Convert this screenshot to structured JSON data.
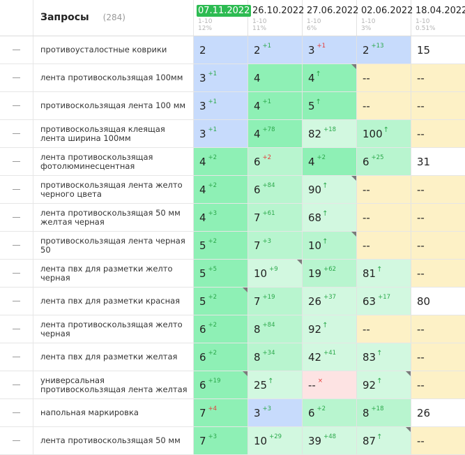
{
  "header": {
    "title": "Запросы",
    "count": "(284)",
    "dates": [
      {
        "label": "07.11.2022",
        "active": true,
        "range": "1-10",
        "pct": "12%"
      },
      {
        "label": "26.10.2022",
        "active": false,
        "range": "1-10",
        "pct": "11%"
      },
      {
        "label": "27.06.2022",
        "active": false,
        "range": "1-10",
        "pct": "6%"
      },
      {
        "label": "02.06.2022",
        "active": false,
        "range": "1-10",
        "pct": "3%"
      },
      {
        "label": "18.04.2022",
        "active": false,
        "range": "1-10",
        "pct": "0.51%"
      }
    ]
  },
  "colors": {
    "blue": "#c7dbfc",
    "green": "#8ef0b5",
    "light": "#b8f5cf",
    "lighter": "#d2f8e0",
    "yellow": "#fdf1c6",
    "pink": "#fde3e3",
    "active_date": "#2dbb52"
  },
  "rows": [
    {
      "query": "противоусталостные коврики",
      "cells": [
        {
          "v": "2",
          "bg": "blue"
        },
        {
          "v": "2",
          "d": "+1",
          "dir": "up",
          "bg": "blue"
        },
        {
          "v": "3",
          "d": "+1",
          "dir": "down",
          "bg": "blue"
        },
        {
          "v": "2",
          "d": "+13",
          "dir": "up",
          "bg": "blue"
        },
        {
          "v": "15",
          "bg": "white"
        }
      ]
    },
    {
      "query": "лента противоскользящая 100мм",
      "cells": [
        {
          "v": "3",
          "d": "+1",
          "dir": "up",
          "bg": "blue"
        },
        {
          "v": "4",
          "bg": "green"
        },
        {
          "v": "4",
          "arrow": true,
          "bg": "green",
          "corner": true
        },
        {
          "v": "--",
          "bg": "yellow"
        },
        {
          "v": "--",
          "bg": "yellow"
        }
      ]
    },
    {
      "query": "противоскользящая лента 100 мм",
      "cells": [
        {
          "v": "3",
          "d": "+1",
          "dir": "up",
          "bg": "blue"
        },
        {
          "v": "4",
          "d": "+1",
          "dir": "up",
          "bg": "green"
        },
        {
          "v": "5",
          "arrow": true,
          "bg": "green"
        },
        {
          "v": "--",
          "bg": "yellow"
        },
        {
          "v": "--",
          "bg": "yellow"
        }
      ]
    },
    {
      "query": "противоскользящая клеящая лента ширина 100мм",
      "cells": [
        {
          "v": "3",
          "d": "+1",
          "dir": "up",
          "bg": "blue"
        },
        {
          "v": "4",
          "d": "+78",
          "dir": "up",
          "bg": "green"
        },
        {
          "v": "82",
          "d": "+18",
          "dir": "up",
          "bg": "lighter"
        },
        {
          "v": "100",
          "arrow": true,
          "bg": "light"
        },
        {
          "v": "--",
          "bg": "yellow"
        }
      ]
    },
    {
      "query": "лента противоскользящая фотолюминесцентная",
      "cells": [
        {
          "v": "4",
          "d": "+2",
          "dir": "up",
          "bg": "green"
        },
        {
          "v": "6",
          "d": "+2",
          "dir": "down",
          "bg": "light"
        },
        {
          "v": "4",
          "d": "+2",
          "dir": "up",
          "bg": "green"
        },
        {
          "v": "6",
          "d": "+25",
          "dir": "up",
          "bg": "light"
        },
        {
          "v": "31",
          "bg": "white"
        }
      ]
    },
    {
      "query": "противоскользящая лента желто черного цвета",
      "cells": [
        {
          "v": "4",
          "d": "+2",
          "dir": "up",
          "bg": "green"
        },
        {
          "v": "6",
          "d": "+84",
          "dir": "up",
          "bg": "light"
        },
        {
          "v": "90",
          "arrow": true,
          "bg": "lighter",
          "corner": true
        },
        {
          "v": "--",
          "bg": "yellow"
        },
        {
          "v": "--",
          "bg": "yellow"
        }
      ]
    },
    {
      "query": "лента противоскользящая 50 мм желтая черная",
      "cells": [
        {
          "v": "4",
          "d": "+3",
          "dir": "up",
          "bg": "green"
        },
        {
          "v": "7",
          "d": "+61",
          "dir": "up",
          "bg": "light"
        },
        {
          "v": "68",
          "arrow": true,
          "bg": "lighter"
        },
        {
          "v": "--",
          "bg": "yellow"
        },
        {
          "v": "--",
          "bg": "yellow"
        }
      ]
    },
    {
      "query": "противоскользящая лента черная 50",
      "cells": [
        {
          "v": "5",
          "d": "+2",
          "dir": "up",
          "bg": "green"
        },
        {
          "v": "7",
          "d": "+3",
          "dir": "up",
          "bg": "light"
        },
        {
          "v": "10",
          "arrow": true,
          "bg": "light",
          "corner": true
        },
        {
          "v": "--",
          "bg": "yellow"
        },
        {
          "v": "--",
          "bg": "yellow"
        }
      ]
    },
    {
      "query": "лента пвх для разметки желто черная",
      "cells": [
        {
          "v": "5",
          "d": "+5",
          "dir": "up",
          "bg": "green"
        },
        {
          "v": "10",
          "d": "+9",
          "dir": "up",
          "bg": "lighter",
          "corner": true
        },
        {
          "v": "19",
          "d": "+62",
          "dir": "up",
          "bg": "light"
        },
        {
          "v": "81",
          "arrow": true,
          "bg": "lighter"
        },
        {
          "v": "--",
          "bg": "yellow"
        }
      ]
    },
    {
      "query": "лента пвх для разметки красная",
      "cells": [
        {
          "v": "5",
          "d": "+2",
          "dir": "up",
          "bg": "green",
          "corner": true
        },
        {
          "v": "7",
          "d": "+19",
          "dir": "up",
          "bg": "light"
        },
        {
          "v": "26",
          "d": "+37",
          "dir": "up",
          "bg": "lighter"
        },
        {
          "v": "63",
          "d": "+17",
          "dir": "up",
          "bg": "lighter"
        },
        {
          "v": "80",
          "bg": "white"
        }
      ]
    },
    {
      "query": "лента противоскользящая желто черная",
      "cells": [
        {
          "v": "6",
          "d": "+2",
          "dir": "up",
          "bg": "green"
        },
        {
          "v": "8",
          "d": "+84",
          "dir": "up",
          "bg": "light"
        },
        {
          "v": "92",
          "arrow": true,
          "bg": "lighter"
        },
        {
          "v": "--",
          "bg": "yellow"
        },
        {
          "v": "--",
          "bg": "yellow"
        }
      ]
    },
    {
      "query": "лента пвх для разметки желтая",
      "cells": [
        {
          "v": "6",
          "d": "+2",
          "dir": "up",
          "bg": "green"
        },
        {
          "v": "8",
          "d": "+34",
          "dir": "up",
          "bg": "light"
        },
        {
          "v": "42",
          "d": "+41",
          "dir": "up",
          "bg": "lighter"
        },
        {
          "v": "83",
          "arrow": true,
          "bg": "lighter"
        },
        {
          "v": "--",
          "bg": "yellow"
        }
      ]
    },
    {
      "query": "универсальная противоскользящая лента желтая",
      "cells": [
        {
          "v": "6",
          "d": "+19",
          "dir": "up",
          "bg": "green",
          "corner": true
        },
        {
          "v": "25",
          "arrow": true,
          "bg": "lighter"
        },
        {
          "v": "--",
          "d": "×",
          "dir": "down",
          "bg": "pink"
        },
        {
          "v": "92",
          "arrow": true,
          "bg": "lighter",
          "corner": true
        },
        {
          "v": "--",
          "bg": "yellow"
        }
      ]
    },
    {
      "query": "напольная маркировка",
      "cells": [
        {
          "v": "7",
          "d": "+4",
          "dir": "down",
          "bg": "green"
        },
        {
          "v": "3",
          "d": "+3",
          "dir": "up",
          "bg": "blue"
        },
        {
          "v": "6",
          "d": "+2",
          "dir": "up",
          "bg": "light"
        },
        {
          "v": "8",
          "d": "+18",
          "dir": "up",
          "bg": "light"
        },
        {
          "v": "26",
          "bg": "white"
        }
      ]
    },
    {
      "query": "лента противоскользящая 50 мм",
      "cells": [
        {
          "v": "7",
          "d": "+3",
          "dir": "up",
          "bg": "green"
        },
        {
          "v": "10",
          "d": "+29",
          "dir": "up",
          "bg": "lighter"
        },
        {
          "v": "39",
          "d": "+48",
          "dir": "up",
          "bg": "lighter"
        },
        {
          "v": "87",
          "arrow": true,
          "bg": "lighter",
          "corner": true
        },
        {
          "v": "--",
          "bg": "yellow"
        }
      ]
    }
  ]
}
